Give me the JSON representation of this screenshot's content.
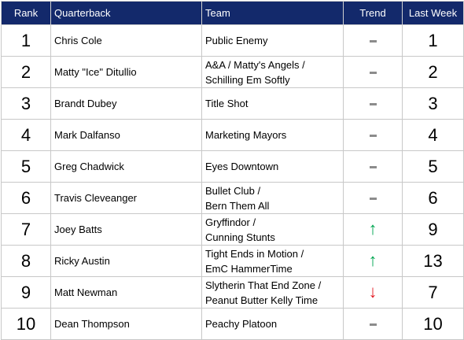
{
  "headers": {
    "rank": "Rank",
    "quarterback": "Quarterback",
    "team": "Team",
    "trend": "Trend",
    "last_week": "Last Week"
  },
  "rows": [
    {
      "rank": "1",
      "qb": "Chris Cole",
      "team": [
        "Public Enemy"
      ],
      "trend": "same",
      "last": "1"
    },
    {
      "rank": "2",
      "qb": "Matty \"Ice\" Ditullio",
      "team": [
        "A&A / Matty's Angels /",
        "Schilling Em Softly"
      ],
      "trend": "same",
      "last": "2"
    },
    {
      "rank": "3",
      "qb": "Brandt Dubey",
      "team": [
        "Title Shot"
      ],
      "trend": "same",
      "last": "3"
    },
    {
      "rank": "4",
      "qb": "Mark Dalfanso",
      "team": [
        "Marketing Mayors"
      ],
      "trend": "same",
      "last": "4"
    },
    {
      "rank": "5",
      "qb": "Greg Chadwick",
      "team": [
        "Eyes Downtown"
      ],
      "trend": "same",
      "last": "5"
    },
    {
      "rank": "6",
      "qb": "Travis Cleveanger",
      "team": [
        "Bullet Club /",
        "Bern Them All"
      ],
      "trend": "same",
      "last": "6"
    },
    {
      "rank": "7",
      "qb": "Joey Batts",
      "team": [
        "Gryffindor /",
        "Cunning Stunts"
      ],
      "trend": "up",
      "last": "9"
    },
    {
      "rank": "8",
      "qb": "Ricky Austin",
      "team": [
        "Tight Ends in Motion /",
        "EmC HammerTime"
      ],
      "trend": "up",
      "last": "13"
    },
    {
      "rank": "9",
      "qb": "Matt Newman",
      "team": [
        "Slytherin That End Zone /",
        "Peanut Butter Kelly Time"
      ],
      "trend": "down",
      "last": "7"
    },
    {
      "rank": "10",
      "qb": "Dean Thompson",
      "team": [
        "Peachy Platoon"
      ],
      "trend": "same",
      "last": "10"
    }
  ],
  "colors": {
    "header_bg": "#13296b",
    "trend_up": "#00a651",
    "trend_down": "#e31b23",
    "trend_same": "#8c8c8c"
  }
}
